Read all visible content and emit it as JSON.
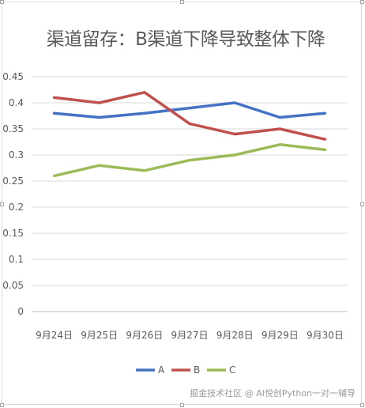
{
  "chart_data": {
    "type": "line",
    "title": "渠道留存：B渠道下降导致整体下降",
    "xlabel": "",
    "ylabel": "",
    "categories": [
      "9月24日",
      "9月25日",
      "9月26日",
      "9月27日",
      "9月28日",
      "9月29日",
      "9月30日"
    ],
    "ylim": [
      0,
      0.45
    ],
    "yticks": [
      "0",
      "0.05",
      "0.1",
      "0.15",
      "0.2",
      "0.25",
      "0.3",
      "0.35",
      "0.4",
      "0.45"
    ],
    "grid": true,
    "legend_position": "bottom",
    "series": [
      {
        "name": "A",
        "color": "#4472c4",
        "values": [
          0.38,
          0.372,
          0.38,
          0.39,
          0.4,
          0.372,
          0.38
        ]
      },
      {
        "name": "B",
        "color": "#c0504d",
        "values": [
          0.41,
          0.4,
          0.42,
          0.36,
          0.34,
          0.35,
          0.33
        ]
      },
      {
        "name": "C",
        "color": "#9bbb59",
        "values": [
          0.26,
          0.28,
          0.27,
          0.29,
          0.3,
          0.32,
          0.31
        ]
      }
    ]
  },
  "watermark": "掘金技术社区 @ AI悦创Python一对一辅导"
}
